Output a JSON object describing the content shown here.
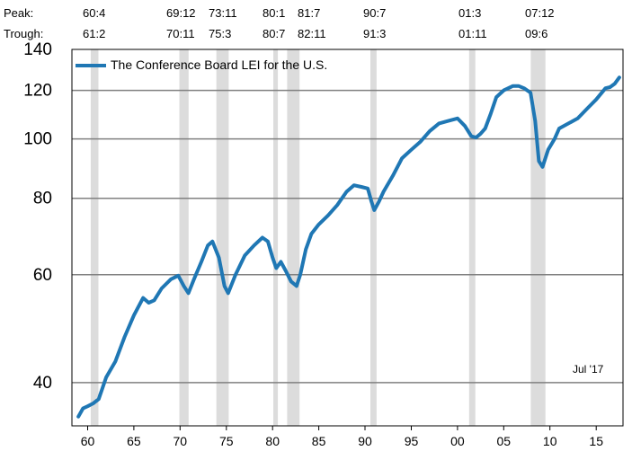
{
  "peak_label": "Peak:",
  "trough_label": "Trough:",
  "recessions": [
    {
      "peak": "60:4",
      "trough": "61:2",
      "start": 1960.33,
      "end": 1961.17
    },
    {
      "peak": "69:12",
      "trough": "70:11",
      "start": 1969.92,
      "end": 1970.92
    },
    {
      "peak": "73:11",
      "trough": "75:3",
      "start": 1973.92,
      "end": 1975.25
    },
    {
      "peak": "80:1",
      "trough": "80:7",
      "start": 1980.08,
      "end": 1980.58
    },
    {
      "peak": "81:7",
      "trough": "82:11",
      "start": 1981.58,
      "end": 1982.92
    },
    {
      "peak": "90:7",
      "trough": "91:3",
      "start": 1990.58,
      "end": 1991.25
    },
    {
      "peak": "01:3",
      "trough": "01:11",
      "start": 2001.25,
      "end": 2001.92
    },
    {
      "peak": "07:12",
      "trough": "09:6",
      "start": 2007.92,
      "end": 2009.5
    }
  ],
  "chart_data": {
    "type": "line",
    "yscale": "log",
    "ylim": [
      34,
      140
    ],
    "xlim": [
      1958.3,
      2017.9
    ],
    "y_ticks": [
      40,
      60,
      80,
      100,
      120,
      140
    ],
    "y_tick_labels": [
      "40",
      "60",
      "80",
      "100",
      "120",
      "140"
    ],
    "y_gridlines": [
      40,
      60,
      80,
      100,
      120
    ],
    "x_ticks": [
      1960,
      1965,
      1970,
      1975,
      1980,
      1985,
      1990,
      1995,
      2000,
      2005,
      2010,
      2015
    ],
    "x_tick_labels": [
      "60",
      "65",
      "70",
      "75",
      "80",
      "85",
      "90",
      "95",
      "00",
      "05",
      "10",
      "15"
    ],
    "legend": "The Conference Board LEI for the U.S.",
    "legend_position": "top-left",
    "annotation": "Jul '17",
    "line_color": "#1f77b4",
    "shade_color": "#dcdcdc",
    "series": [
      {
        "name": "The Conference Board LEI for the U.S.",
        "x": [
          1959.0,
          1959.5,
          1960.0,
          1960.6,
          1961.2,
          1962.0,
          1963.0,
          1964.0,
          1965.0,
          1966.0,
          1966.6,
          1967.2,
          1968.0,
          1969.0,
          1969.8,
          1970.4,
          1970.9,
          1971.5,
          1972.3,
          1973.0,
          1973.5,
          1974.2,
          1974.8,
          1975.2,
          1976.0,
          1977.0,
          1978.0,
          1978.9,
          1979.5,
          1980.0,
          1980.4,
          1980.9,
          1981.4,
          1982.0,
          1982.6,
          1983.0,
          1983.6,
          1984.2,
          1985.0,
          1986.0,
          1987.0,
          1988.0,
          1988.8,
          1989.6,
          1990.3,
          1990.7,
          1991.0,
          1991.5,
          1992.0,
          1993.0,
          1994.0,
          1995.0,
          1996.0,
          1997.0,
          1998.0,
          1999.0,
          2000.0,
          2000.8,
          2001.5,
          2002.0,
          2002.5,
          2003.0,
          2003.6,
          2004.2,
          2005.0,
          2006.0,
          2006.6,
          2007.2,
          2007.9,
          2008.4,
          2008.8,
          2009.2,
          2009.8,
          2010.5,
          2011.0,
          2012.0,
          2013.0,
          2014.0,
          2015.0,
          2016.0,
          2016.5,
          2017.0,
          2017.5
        ],
        "y": [
          35.2,
          36.3,
          36.6,
          37.0,
          37.6,
          40.8,
          43.3,
          47.5,
          51.5,
          55.0,
          54.0,
          54.5,
          57.0,
          59.0,
          59.8,
          57.5,
          56.0,
          59.0,
          63.0,
          67.0,
          68.0,
          64.0,
          57.5,
          56.0,
          60.0,
          64.5,
          67.0,
          69.0,
          68.0,
          64.0,
          61.5,
          63.0,
          61.0,
          58.5,
          57.5,
          60.0,
          66.0,
          70.0,
          72.5,
          75.0,
          78.0,
          82.0,
          84.0,
          83.5,
          83.0,
          79.0,
          76.5,
          79.0,
          82.0,
          87.0,
          93.0,
          96.0,
          99.0,
          103.0,
          106.0,
          107.0,
          108.0,
          105.0,
          101.0,
          100.5,
          102.0,
          104.0,
          110.0,
          117.0,
          120.0,
          122.0,
          122.0,
          121.0,
          119.0,
          107.0,
          92.0,
          90.0,
          96.0,
          100.0,
          104.0,
          106.0,
          108.0,
          112.0,
          116.0,
          121.0,
          121.5,
          123.0,
          126.0
        ]
      }
    ]
  }
}
